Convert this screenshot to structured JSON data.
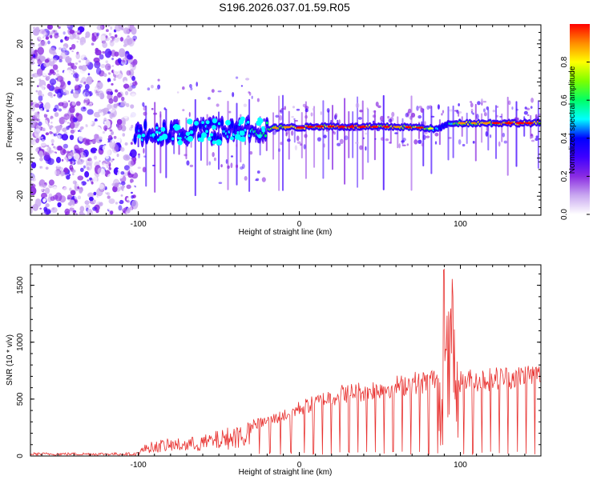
{
  "figure_title": "S196.2026.037.01.59.R05",
  "chart_data": [
    {
      "type": "heatmap",
      "title": "S196.2026.037.01.59.R05",
      "xlabel": "Height of straight line (km)",
      "ylabel": "Frequency (Hz)",
      "xlim": [
        -167,
        150
      ],
      "ylim": [
        -25,
        25
      ],
      "x_ticks": [
        -100,
        0,
        100
      ],
      "y_ticks": [
        -20,
        -10,
        0,
        10,
        20
      ],
      "colorbar": {
        "label": "Normalized spectral amplitude",
        "range": [
          0,
          1
        ],
        "ticks": [
          0.0,
          0.2,
          0.4,
          0.6,
          0.8
        ],
        "colormap": [
          "#ffffff",
          "#c9a8f0",
          "#8a2be2",
          "#3f00ff",
          "#0000ff",
          "#00ffff",
          "#00ff66",
          "#7cff00",
          "#ffff00",
          "#ff8c00",
          "#ff0000"
        ]
      },
      "ridge": {
        "x_km": [
          -105,
          -90,
          -75,
          -60,
          -45,
          -30,
          -20,
          -10,
          0,
          10,
          20,
          30,
          40,
          50,
          60,
          70,
          80,
          85,
          90,
          95,
          100,
          110,
          120,
          130,
          140,
          150
        ],
        "f_hz": [
          -3.5,
          -3.2,
          -3.0,
          -3.0,
          -2.8,
          -2.6,
          -2.3,
          -1.8,
          -2.0,
          -1.7,
          -1.7,
          -1.8,
          -1.8,
          -1.8,
          -1.8,
          -1.9,
          -2.1,
          -2.5,
          -1.5,
          -0.8,
          -0.8,
          -0.8,
          -0.8,
          -0.8,
          -0.8,
          -0.8
        ],
        "amp": [
          0.4,
          0.45,
          0.45,
          0.4,
          0.45,
          0.5,
          0.6,
          0.75,
          0.85,
          0.8,
          0.85,
          0.9,
          0.9,
          0.85,
          0.8,
          0.75,
          0.7,
          0.45,
          0.35,
          0.6,
          0.7,
          0.75,
          0.75,
          0.8,
          0.85,
          0.8
        ]
      },
      "noise_region_x_km": [
        -167,
        -102
      ]
    },
    {
      "type": "line",
      "xlabel": "Height of straight line (km)",
      "ylabel": "SNR (10 * v/v)",
      "xlim": [
        -167,
        150
      ],
      "ylim": [
        0,
        1680
      ],
      "x_ticks": [
        -100,
        0,
        100
      ],
      "y_ticks": [
        0,
        500,
        1000,
        1500
      ],
      "line_color": "#e8312f",
      "envelope": {
        "x_km": [
          -167,
          -120,
          -102,
          -95,
          -85,
          -70,
          -60,
          -50,
          -40,
          -30,
          -20,
          -10,
          0,
          10,
          20,
          30,
          40,
          50,
          60,
          70,
          80,
          88,
          92,
          95,
          98,
          100,
          110,
          120,
          130,
          140,
          150
        ],
        "snr": [
          10,
          15,
          20,
          100,
          130,
          140,
          160,
          200,
          240,
          290,
          330,
          380,
          450,
          500,
          560,
          600,
          610,
          640,
          660,
          690,
          700,
          760,
          1250,
          1400,
          900,
          700,
          720,
          730,
          740,
          760,
          760
        ]
      }
    }
  ]
}
